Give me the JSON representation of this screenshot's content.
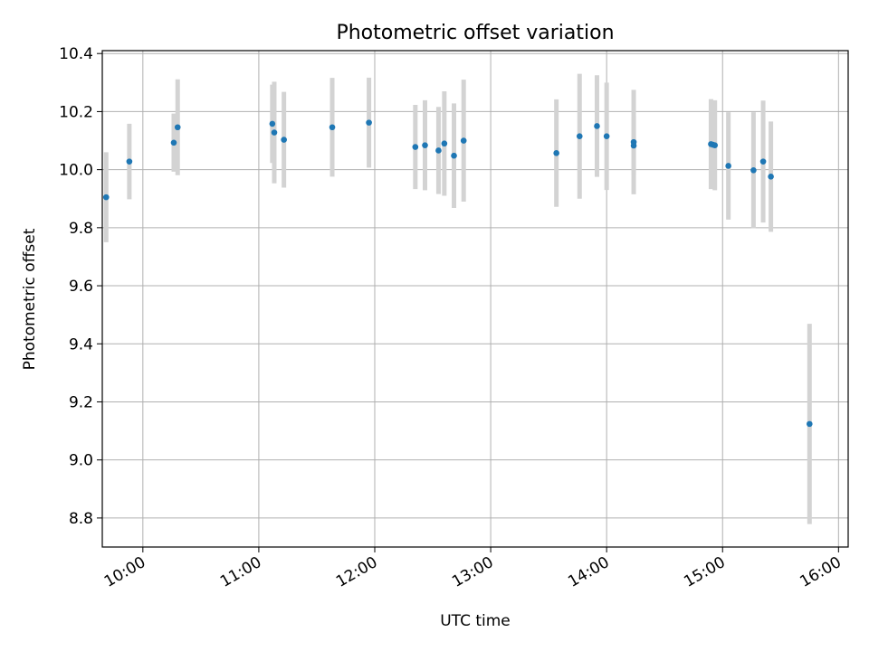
{
  "chart_data": {
    "type": "scatter",
    "title": "Photometric offset variation",
    "xlabel": "UTC time",
    "ylabel": "Photometric offset",
    "xlim": [
      "09:39",
      "16:05"
    ],
    "ylim": [
      8.7,
      10.41
    ],
    "x_ticks": [
      "10:00",
      "11:00",
      "12:00",
      "13:00",
      "14:00",
      "15:00",
      "16:00"
    ],
    "y_ticks": [
      "8.8",
      "9.0",
      "9.2",
      "9.4",
      "9.6",
      "9.8",
      "10.0",
      "10.2",
      "10.4"
    ],
    "grid": true,
    "colors": {
      "points": "#1f77b4",
      "error_bars": "#d3d3d3",
      "grid": "#b0b0b0"
    },
    "points": [
      {
        "x": "09:41",
        "y": 9.905,
        "yerr": 0.155
      },
      {
        "x": "09:53",
        "y": 10.028,
        "yerr": 0.13
      },
      {
        "x": "10:16",
        "y": 10.093,
        "yerr": 0.1
      },
      {
        "x": "10:18",
        "y": 10.146,
        "yerr": 0.165
      },
      {
        "x": "11:07",
        "y": 10.158,
        "yerr": 0.135
      },
      {
        "x": "11:08",
        "y": 10.128,
        "yerr": 0.175
      },
      {
        "x": "11:13",
        "y": 10.103,
        "yerr": 0.165
      },
      {
        "x": "11:38",
        "y": 10.146,
        "yerr": 0.17
      },
      {
        "x": "11:57",
        "y": 10.162,
        "yerr": 0.155
      },
      {
        "x": "12:21",
        "y": 10.078,
        "yerr": 0.145
      },
      {
        "x": "12:26",
        "y": 10.084,
        "yerr": 0.155
      },
      {
        "x": "12:33",
        "y": 10.066,
        "yerr": 0.15
      },
      {
        "x": "12:36",
        "y": 10.09,
        "yerr": 0.18
      },
      {
        "x": "12:41",
        "y": 10.048,
        "yerr": 0.18
      },
      {
        "x": "12:46",
        "y": 10.1,
        "yerr": 0.21
      },
      {
        "x": "13:34",
        "y": 10.057,
        "yerr": 0.185
      },
      {
        "x": "13:46",
        "y": 10.115,
        "yerr": 0.215
      },
      {
        "x": "13:55",
        "y": 10.15,
        "yerr": 0.175
      },
      {
        "x": "14:00",
        "y": 10.115,
        "yerr": 0.185
      },
      {
        "x": "14:14",
        "y": 10.095,
        "yerr": 0.18
      },
      {
        "x": "14:14",
        "y": 10.083,
        "yerr": 0.1
      },
      {
        "x": "14:54",
        "y": 10.088,
        "yerr": 0.155
      },
      {
        "x": "14:55",
        "y": 10.086,
        "yerr": 0.15
      },
      {
        "x": "14:56",
        "y": 10.084,
        "yerr": 0.155
      },
      {
        "x": "15:03",
        "y": 10.013,
        "yerr": 0.185
      },
      {
        "x": "15:16",
        "y": 9.998,
        "yerr": 0.2
      },
      {
        "x": "15:21",
        "y": 10.028,
        "yerr": 0.21
      },
      {
        "x": "15:25",
        "y": 9.976,
        "yerr": 0.19
      },
      {
        "x": "15:45",
        "y": 9.124,
        "yerr": 0.345
      }
    ]
  }
}
